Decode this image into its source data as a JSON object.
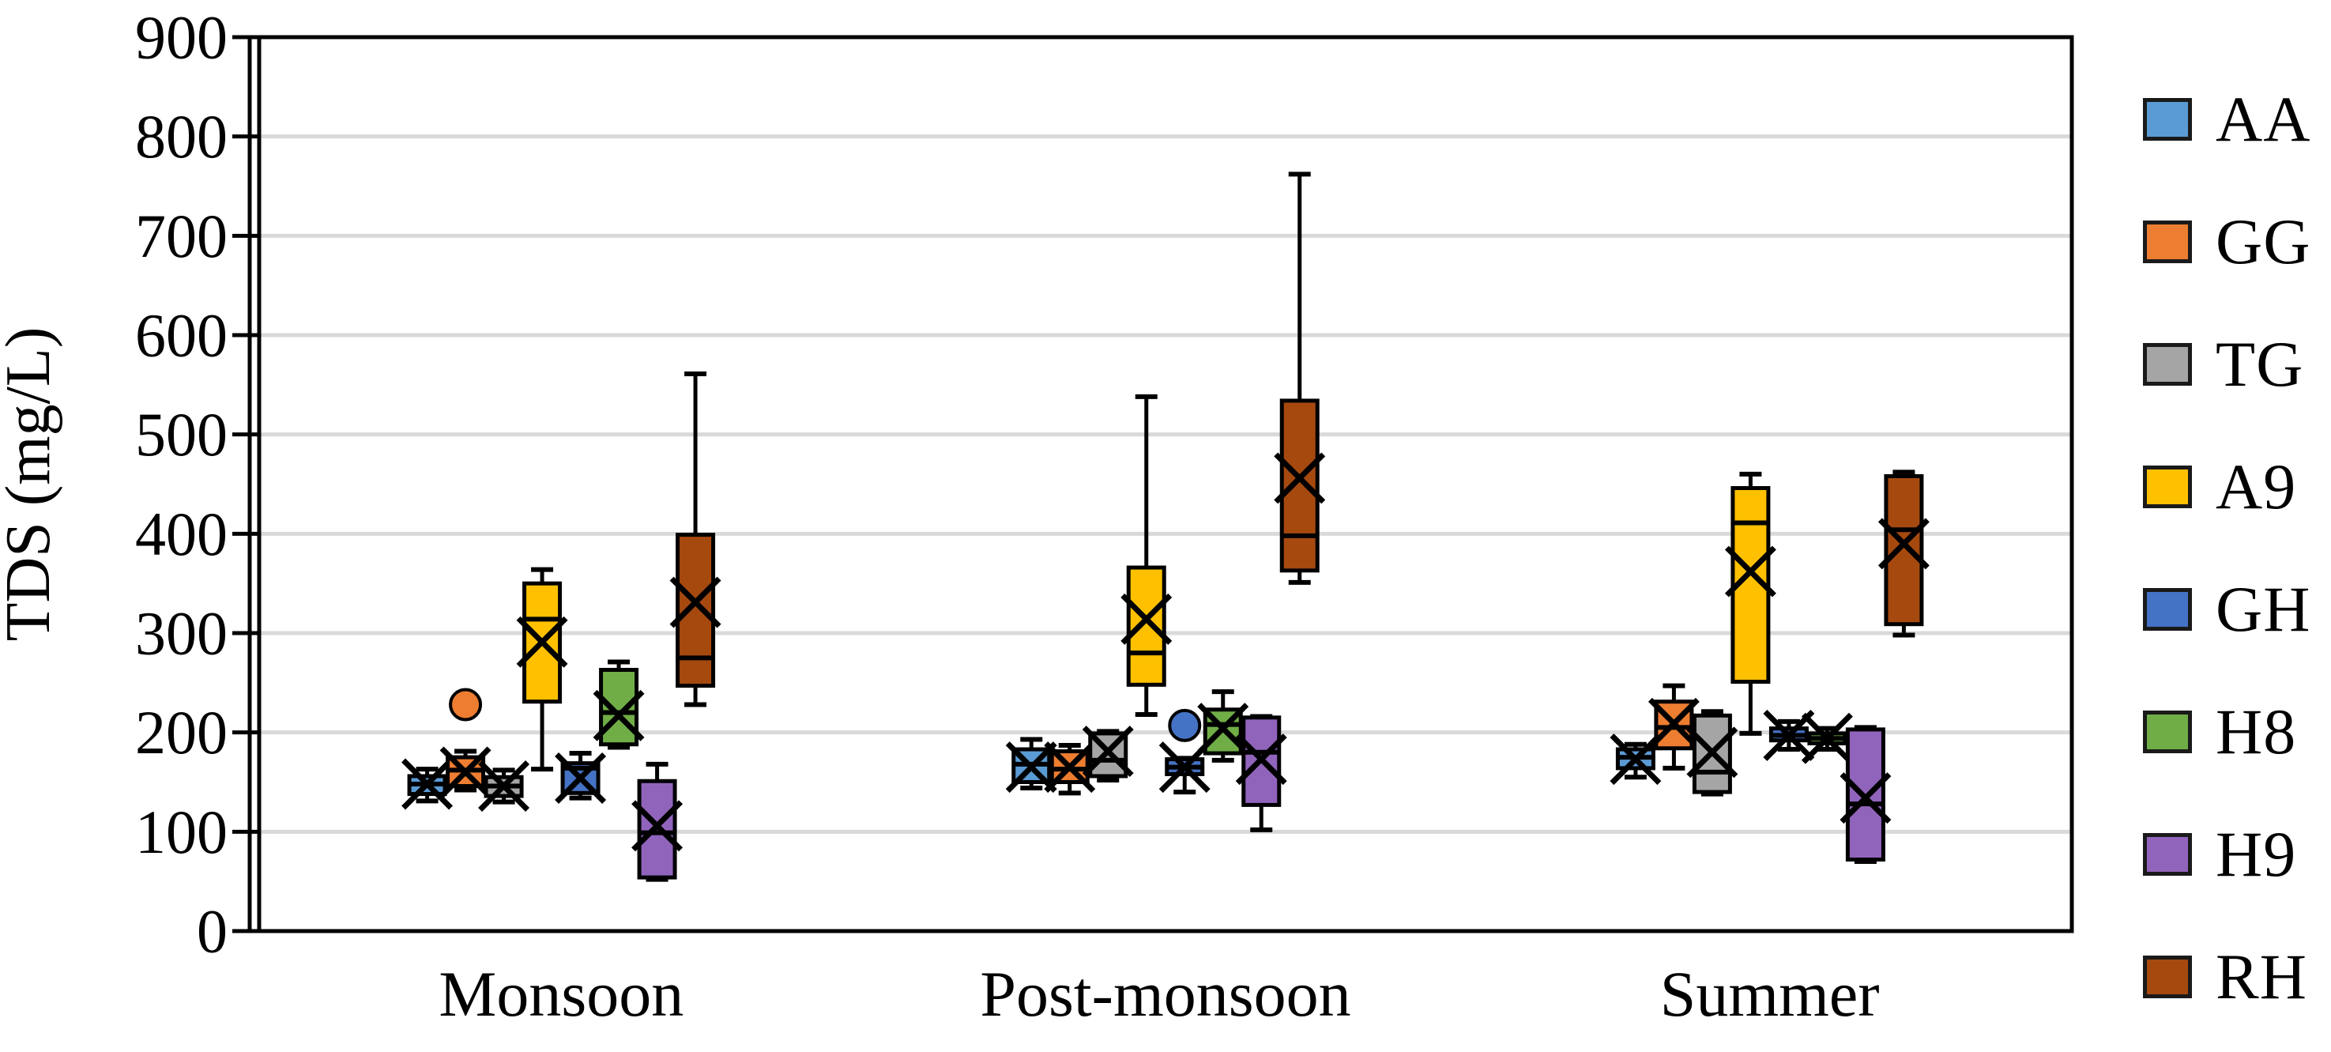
{
  "figure_title": "Seasonal TDS box plot",
  "colors": {
    "grid": "#D9D9D9",
    "axis": "#000000",
    "text": "#000000",
    "background": "#FFFFFF"
  },
  "chart_data": {
    "type": "box",
    "title": "",
    "xlabel": "",
    "ylabel": "TDS (mg/L)",
    "ylim": [
      0,
      900
    ],
    "ytick_step": 100,
    "yticks": [
      0,
      100,
      200,
      300,
      400,
      500,
      600,
      700,
      800,
      900
    ],
    "grid": "horizontal",
    "legend_position": "right",
    "categories": [
      "Monsoon",
      "Post-monsoon",
      "Summer"
    ],
    "series": [
      {
        "name": "AA",
        "color": "#5B9BD5",
        "boxes": [
          {
            "min": 131,
            "q1": 138,
            "median": 148,
            "mean": 148,
            "q3": 156,
            "max": 163,
            "outliers": []
          },
          {
            "min": 144,
            "q1": 150,
            "median": 168,
            "mean": 165,
            "q3": 183,
            "max": 193,
            "outliers": []
          },
          {
            "min": 155,
            "q1": 164,
            "median": 175,
            "mean": 173,
            "q3": 183,
            "max": 188,
            "outliers": []
          }
        ]
      },
      {
        "name": "GG",
        "color": "#ED7D31",
        "boxes": [
          {
            "min": 142,
            "q1": 146,
            "median": 162,
            "mean": 160,
            "q3": 175,
            "max": 181,
            "outliers": [
              228
            ]
          },
          {
            "min": 139,
            "q1": 150,
            "median": 163,
            "mean": 165,
            "q3": 181,
            "max": 187,
            "outliers": []
          },
          {
            "min": 164,
            "q1": 184,
            "median": 205,
            "mean": 209,
            "q3": 231,
            "max": 247,
            "outliers": []
          }
        ]
      },
      {
        "name": "TG",
        "color": "#A5A5A5",
        "boxes": [
          {
            "min": 130,
            "q1": 136,
            "median": 146,
            "mean": 146,
            "q3": 155,
            "max": 162,
            "outliers": []
          },
          {
            "min": 152,
            "q1": 156,
            "median": 172,
            "mean": 181,
            "q3": 199,
            "max": 201,
            "outliers": []
          },
          {
            "min": 138,
            "q1": 140,
            "median": 160,
            "mean": 180,
            "q3": 217,
            "max": 221,
            "outliers": []
          }
        ]
      },
      {
        "name": "A9",
        "color": "#FFC000",
        "boxes": [
          {
            "min": 163,
            "q1": 231,
            "median": 314,
            "mean": 291,
            "q3": 350,
            "max": 364,
            "outliers": []
          },
          {
            "min": 218,
            "q1": 248,
            "median": 280,
            "mean": 314,
            "q3": 366,
            "max": 538,
            "outliers": []
          },
          {
            "min": 199,
            "q1": 251,
            "median": 411,
            "mean": 362,
            "q3": 446,
            "max": 460,
            "outliers": []
          }
        ]
      },
      {
        "name": "GH",
        "color": "#4472C4",
        "boxes": [
          {
            "min": 134,
            "q1": 139,
            "median": 164,
            "mean": 154,
            "q3": 169,
            "max": 179,
            "outliers": []
          },
          {
            "min": 140,
            "q1": 158,
            "median": 165,
            "mean": 165,
            "q3": 173,
            "max": 174,
            "outliers": [
              207
            ]
          },
          {
            "min": 183,
            "q1": 192,
            "median": 197,
            "mean": 197,
            "q3": 204,
            "max": 211,
            "outliers": []
          }
        ]
      },
      {
        "name": "H8",
        "color": "#70AD47",
        "boxes": [
          {
            "min": 185,
            "q1": 188,
            "median": 220,
            "mean": 217,
            "q3": 263,
            "max": 271,
            "outliers": []
          },
          {
            "min": 172,
            "q1": 179,
            "median": 208,
            "mean": 204,
            "q3": 223,
            "max": 241,
            "outliers": []
          },
          {
            "min": 183,
            "q1": 189,
            "median": 194,
            "mean": 194,
            "q3": 199,
            "max": 204,
            "outliers": []
          }
        ]
      },
      {
        "name": "H9",
        "color": "#9164BC",
        "boxes": [
          {
            "min": 52,
            "q1": 54,
            "median": 99,
            "mean": 106,
            "q3": 151,
            "max": 168,
            "outliers": []
          },
          {
            "min": 102,
            "q1": 127,
            "median": 180,
            "mean": 173,
            "q3": 215,
            "max": 216,
            "outliers": []
          },
          {
            "min": 70,
            "q1": 72,
            "median": 128,
            "mean": 134,
            "q3": 203,
            "max": 205,
            "outliers": []
          }
        ]
      },
      {
        "name": "RH",
        "color": "#A6490F",
        "boxes": [
          {
            "min": 228,
            "q1": 247,
            "median": 275,
            "mean": 331,
            "q3": 399,
            "max": 561,
            "outliers": []
          },
          {
            "min": 351,
            "q1": 363,
            "median": 398,
            "mean": 456,
            "q3": 534,
            "max": 762,
            "outliers": []
          },
          {
            "min": 298,
            "q1": 309,
            "median": 404,
            "mean": 390,
            "q3": 458,
            "max": 462,
            "outliers": []
          }
        ]
      }
    ]
  }
}
